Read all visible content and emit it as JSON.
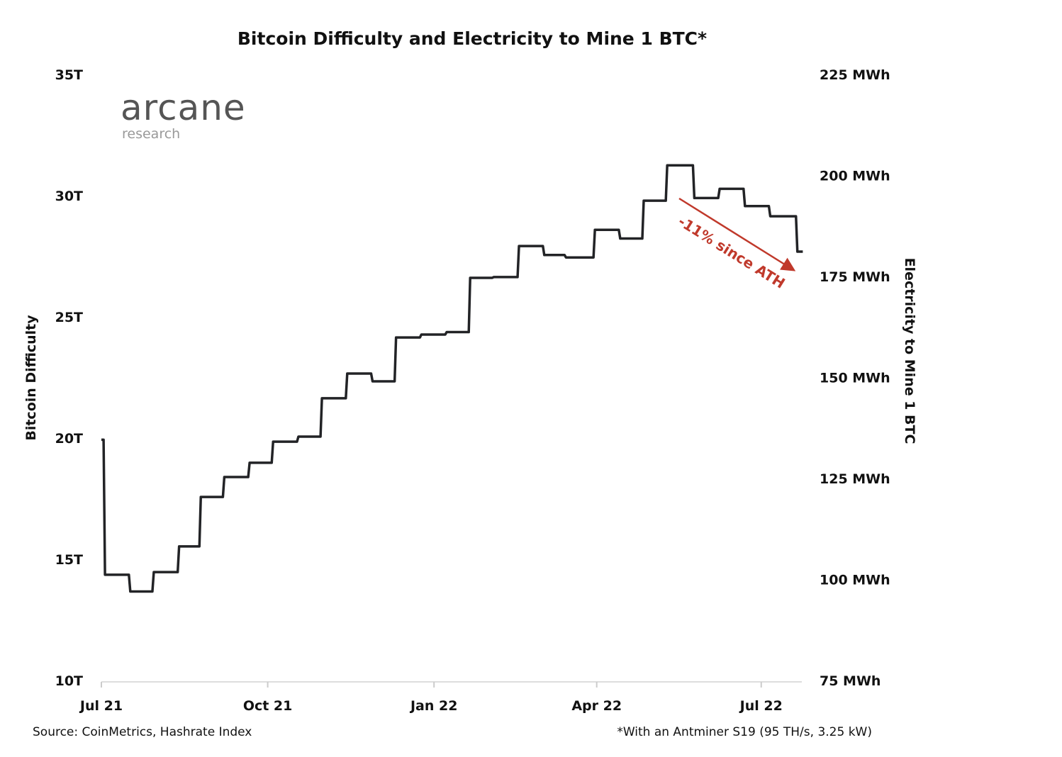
{
  "chart_data": {
    "type": "line",
    "title": "Bitcoin Difficulty and Electricity to Mine 1 BTC*",
    "ylabel": "Bitcoin Difficulty",
    "ylabel_right": "Electricity to Mine 1 BTC",
    "ylim": [
      10,
      35
    ],
    "ylim_right": [
      75,
      225
    ],
    "yticks": [
      "35T",
      "30T",
      "25T",
      "20T",
      "15T",
      "10T"
    ],
    "yticks_right": [
      "225 MWh",
      "200 MWh",
      "175 MWh",
      "150 MWh",
      "125 MWh",
      "100 MWh",
      "75 MWh"
    ],
    "xticks": [
      {
        "label": "Jul 21",
        "date": "2021-07-01"
      },
      {
        "label": "Oct 21",
        "date": "2021-10-01"
      },
      {
        "label": "Jan 22",
        "date": "2022-01-01"
      },
      {
        "label": "Apr 22",
        "date": "2022-04-01"
      },
      {
        "label": "Jul 22",
        "date": "2022-07-01"
      }
    ],
    "grid": false,
    "step": true,
    "line_color": "#222326",
    "series": [
      {
        "unit": "T",
        "points": [
          [
            "2021-07-01",
            19.93
          ],
          [
            "2021-07-03",
            14.36
          ],
          [
            "2021-07-17",
            13.67
          ],
          [
            "2021-07-30",
            14.47
          ],
          [
            "2021-08-13",
            15.53
          ],
          [
            "2021-08-25",
            17.57
          ],
          [
            "2021-09-07",
            18.39
          ],
          [
            "2021-09-21",
            18.98
          ],
          [
            "2021-10-04",
            19.85
          ],
          [
            "2021-10-18",
            20.06
          ],
          [
            "2021-10-31",
            21.64
          ],
          [
            "2021-11-14",
            22.66
          ],
          [
            "2021-11-28",
            22.34
          ],
          [
            "2021-12-11",
            24.15
          ],
          [
            "2021-12-25",
            24.27
          ],
          [
            "2022-01-08",
            24.37
          ],
          [
            "2022-01-21",
            26.61
          ],
          [
            "2022-02-03",
            26.64
          ],
          [
            "2022-02-17",
            27.92
          ],
          [
            "2022-03-03",
            27.55
          ],
          [
            "2022-03-15",
            27.45
          ],
          [
            "2022-03-31",
            28.59
          ],
          [
            "2022-04-14",
            28.23
          ],
          [
            "2022-04-27",
            29.79
          ],
          [
            "2022-05-10",
            31.25
          ],
          [
            "2022-05-25",
            29.9
          ],
          [
            "2022-06-08",
            30.28
          ],
          [
            "2022-06-22",
            29.57
          ],
          [
            "2022-07-06",
            29.15
          ],
          [
            "2022-07-21",
            27.69
          ],
          [
            "2022-07-24",
            27.69
          ]
        ]
      }
    ],
    "annotation": {
      "text": "-11% since ATH",
      "color": "#c0392b"
    }
  },
  "logo": {
    "name": "arcane",
    "sub": "research"
  },
  "source": "Source: CoinMetrics, Hashrate Index",
  "footnote": "*With an Antminer S19 (95 TH/s, 3.25 kW)"
}
